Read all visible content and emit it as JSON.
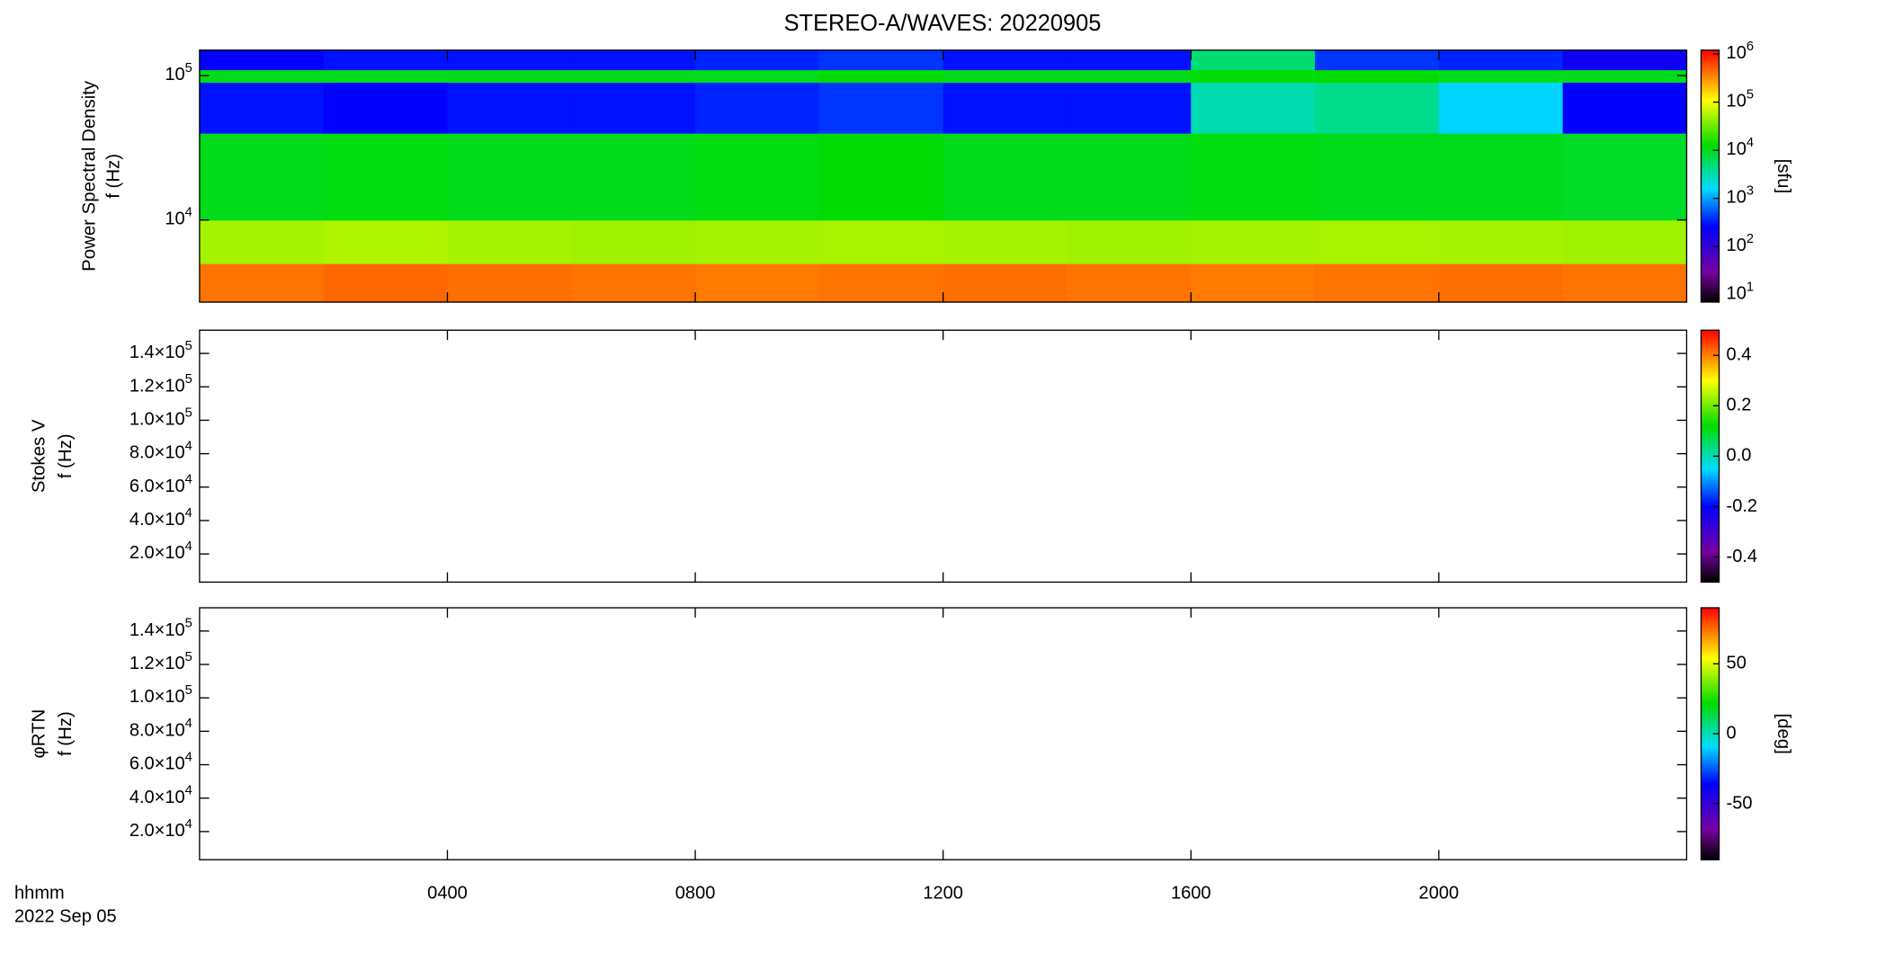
{
  "chart_data": [
    {
      "type": "heatmap",
      "title": "STEREO-A/WAVES: 20220905",
      "ylabel": [
        "Power Spectral Density",
        "f (Hz)"
      ],
      "ylog": true,
      "ylim": [
        2700,
        150000
      ],
      "yticks": [
        {
          "value": 10000,
          "label": "10^4"
        },
        {
          "value": 100000,
          "label": "10^5"
        }
      ],
      "xlim": [
        0,
        24
      ],
      "x": [
        0,
        2,
        4,
        6,
        8,
        10,
        12,
        14,
        16,
        18,
        20,
        22,
        24
      ],
      "y": [
        2700,
        5000,
        10000,
        40000,
        90000,
        110000,
        150000
      ],
      "values": [
        [
          400000,
          450000,
          420000,
          400000,
          380000,
          400000,
          420000,
          400000,
          380000,
          400000,
          420000,
          400000
        ],
        [
          50000,
          55000,
          50000,
          48000,
          50000,
          52000,
          50000,
          48000,
          50000,
          52000,
          50000,
          48000
        ],
        [
          10000,
          11000,
          10000,
          10000,
          11000,
          12000,
          10000,
          10000,
          11000,
          10000,
          10000,
          9000
        ],
        [
          300,
          250,
          300,
          300,
          350,
          400,
          300,
          300,
          3000,
          4000,
          1500,
          250
        ],
        [
          10000,
          10000,
          10000,
          10000,
          10000,
          12000,
          10000,
          10000,
          12000,
          12000,
          10000,
          10000
        ],
        [
          250,
          300,
          300,
          300,
          350,
          400,
          300,
          300,
          5000,
          400,
          350,
          200
        ]
      ],
      "colorbar": {
        "label": "[sfu]",
        "log": true,
        "lim": [
          7,
          1200000
        ],
        "ticks": [
          {
            "value": 10,
            "label": "10^1"
          },
          {
            "value": 100,
            "label": "10^2"
          },
          {
            "value": 1000,
            "label": "10^3"
          },
          {
            "value": 10000,
            "label": "10^4"
          },
          {
            "value": 100000,
            "label": "10^5"
          },
          {
            "value": 1000000,
            "label": "10^6"
          }
        ]
      }
    },
    {
      "type": "heatmap",
      "ylabel": [
        "Stokes V",
        "f (Hz)"
      ],
      "ylim": [
        3150,
        153900
      ],
      "yticks": [
        {
          "value": 20000,
          "label": "2.0×10^4"
        },
        {
          "value": 40000,
          "label": "4.0×10^4"
        },
        {
          "value": 60000,
          "label": "6.0×10^4"
        },
        {
          "value": 80000,
          "label": "8.0×10^4"
        },
        {
          "value": 100000,
          "label": "1.0×10^5"
        },
        {
          "value": 120000,
          "label": "1.2×10^5"
        },
        {
          "value": 140000,
          "label": "1.4×10^5"
        }
      ],
      "xlim": [
        0,
        24
      ],
      "colorbar": {
        "lim": [
          -0.5,
          0.5
        ],
        "ticks": [
          {
            "value": -0.4,
            "label": "-0.4"
          },
          {
            "value": -0.2,
            "label": "-0.2"
          },
          {
            "value": 0,
            "label": "0.0"
          },
          {
            "value": 0.2,
            "label": "0.2"
          },
          {
            "value": 0.4,
            "label": "0.4"
          }
        ]
      }
    },
    {
      "type": "heatmap",
      "ylabel": [
        "φRTN",
        "f (Hz)"
      ],
      "ylim": [
        3150,
        153900
      ],
      "yticks": [
        {
          "value": 20000,
          "label": "2.0×10^4"
        },
        {
          "value": 40000,
          "label": "4.0×10^4"
        },
        {
          "value": 60000,
          "label": "6.0×10^4"
        },
        {
          "value": 80000,
          "label": "8.0×10^4"
        },
        {
          "value": 100000,
          "label": "1.0×10^5"
        },
        {
          "value": 120000,
          "label": "1.2×10^5"
        },
        {
          "value": 140000,
          "label": "1.4×10^5"
        }
      ],
      "xlim": [
        0,
        24
      ],
      "xticks": [
        {
          "value": 4,
          "label": "0400"
        },
        {
          "value": 8,
          "label": "0800"
        },
        {
          "value": 12,
          "label": "1200"
        },
        {
          "value": 16,
          "label": "1600"
        },
        {
          "value": 20,
          "label": "2000"
        }
      ],
      "xlabel": [
        "hhmm",
        "2022 Sep 05"
      ],
      "colorbar": {
        "label": "[deg]",
        "lim": [
          -90,
          90
        ],
        "ticks": [
          -50,
          0,
          50
        ]
      }
    }
  ]
}
